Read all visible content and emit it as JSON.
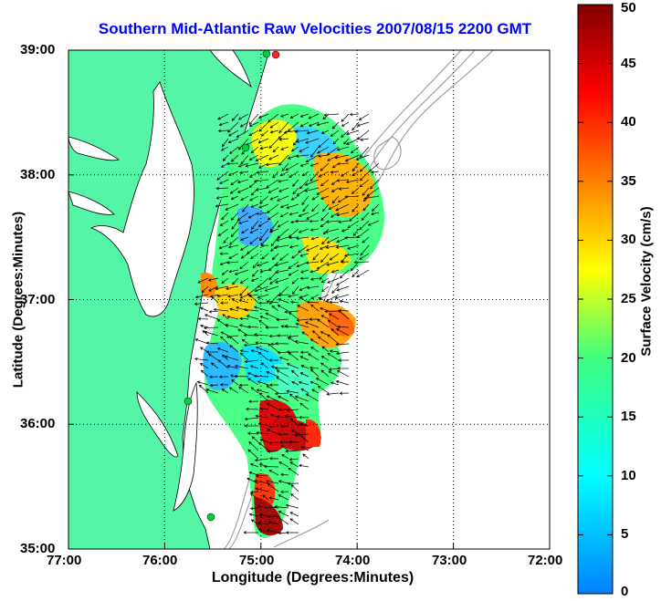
{
  "title": "Southern Mid-Atlantic Raw Velocities 2007/08/15 2200 GMT",
  "x_axis": {
    "label": "Longitude (Degrees:Minutes)",
    "ticks": [
      "77:00",
      "76:00",
      "75:00",
      "74:00",
      "73:00",
      "72:00"
    ]
  },
  "y_axis": {
    "label": "Latitude (Degrees:Minutes)",
    "ticks": [
      "39:00",
      "38:00",
      "37:00",
      "36:00",
      "35:00"
    ]
  },
  "colorbar": {
    "label": "Surface Velocity (cm/s)",
    "ticks": [
      "50",
      "45",
      "40",
      "35",
      "30",
      "25",
      "20",
      "15",
      "10",
      "5",
      "0"
    ],
    "range": [
      0,
      50
    ],
    "colormap": "jet"
  },
  "colors": {
    "land": "#55f5a8",
    "title": "#0000ff",
    "grid_line": "#000000",
    "bathymetry_contour": "#a0a0a0",
    "station_marker": "#00d040",
    "station_marker_offline": "#ff2020"
  },
  "map": {
    "grid": "dotted",
    "lon_range_deg": [
      -77,
      -72
    ],
    "lat_range_deg": [
      35,
      39
    ]
  }
}
